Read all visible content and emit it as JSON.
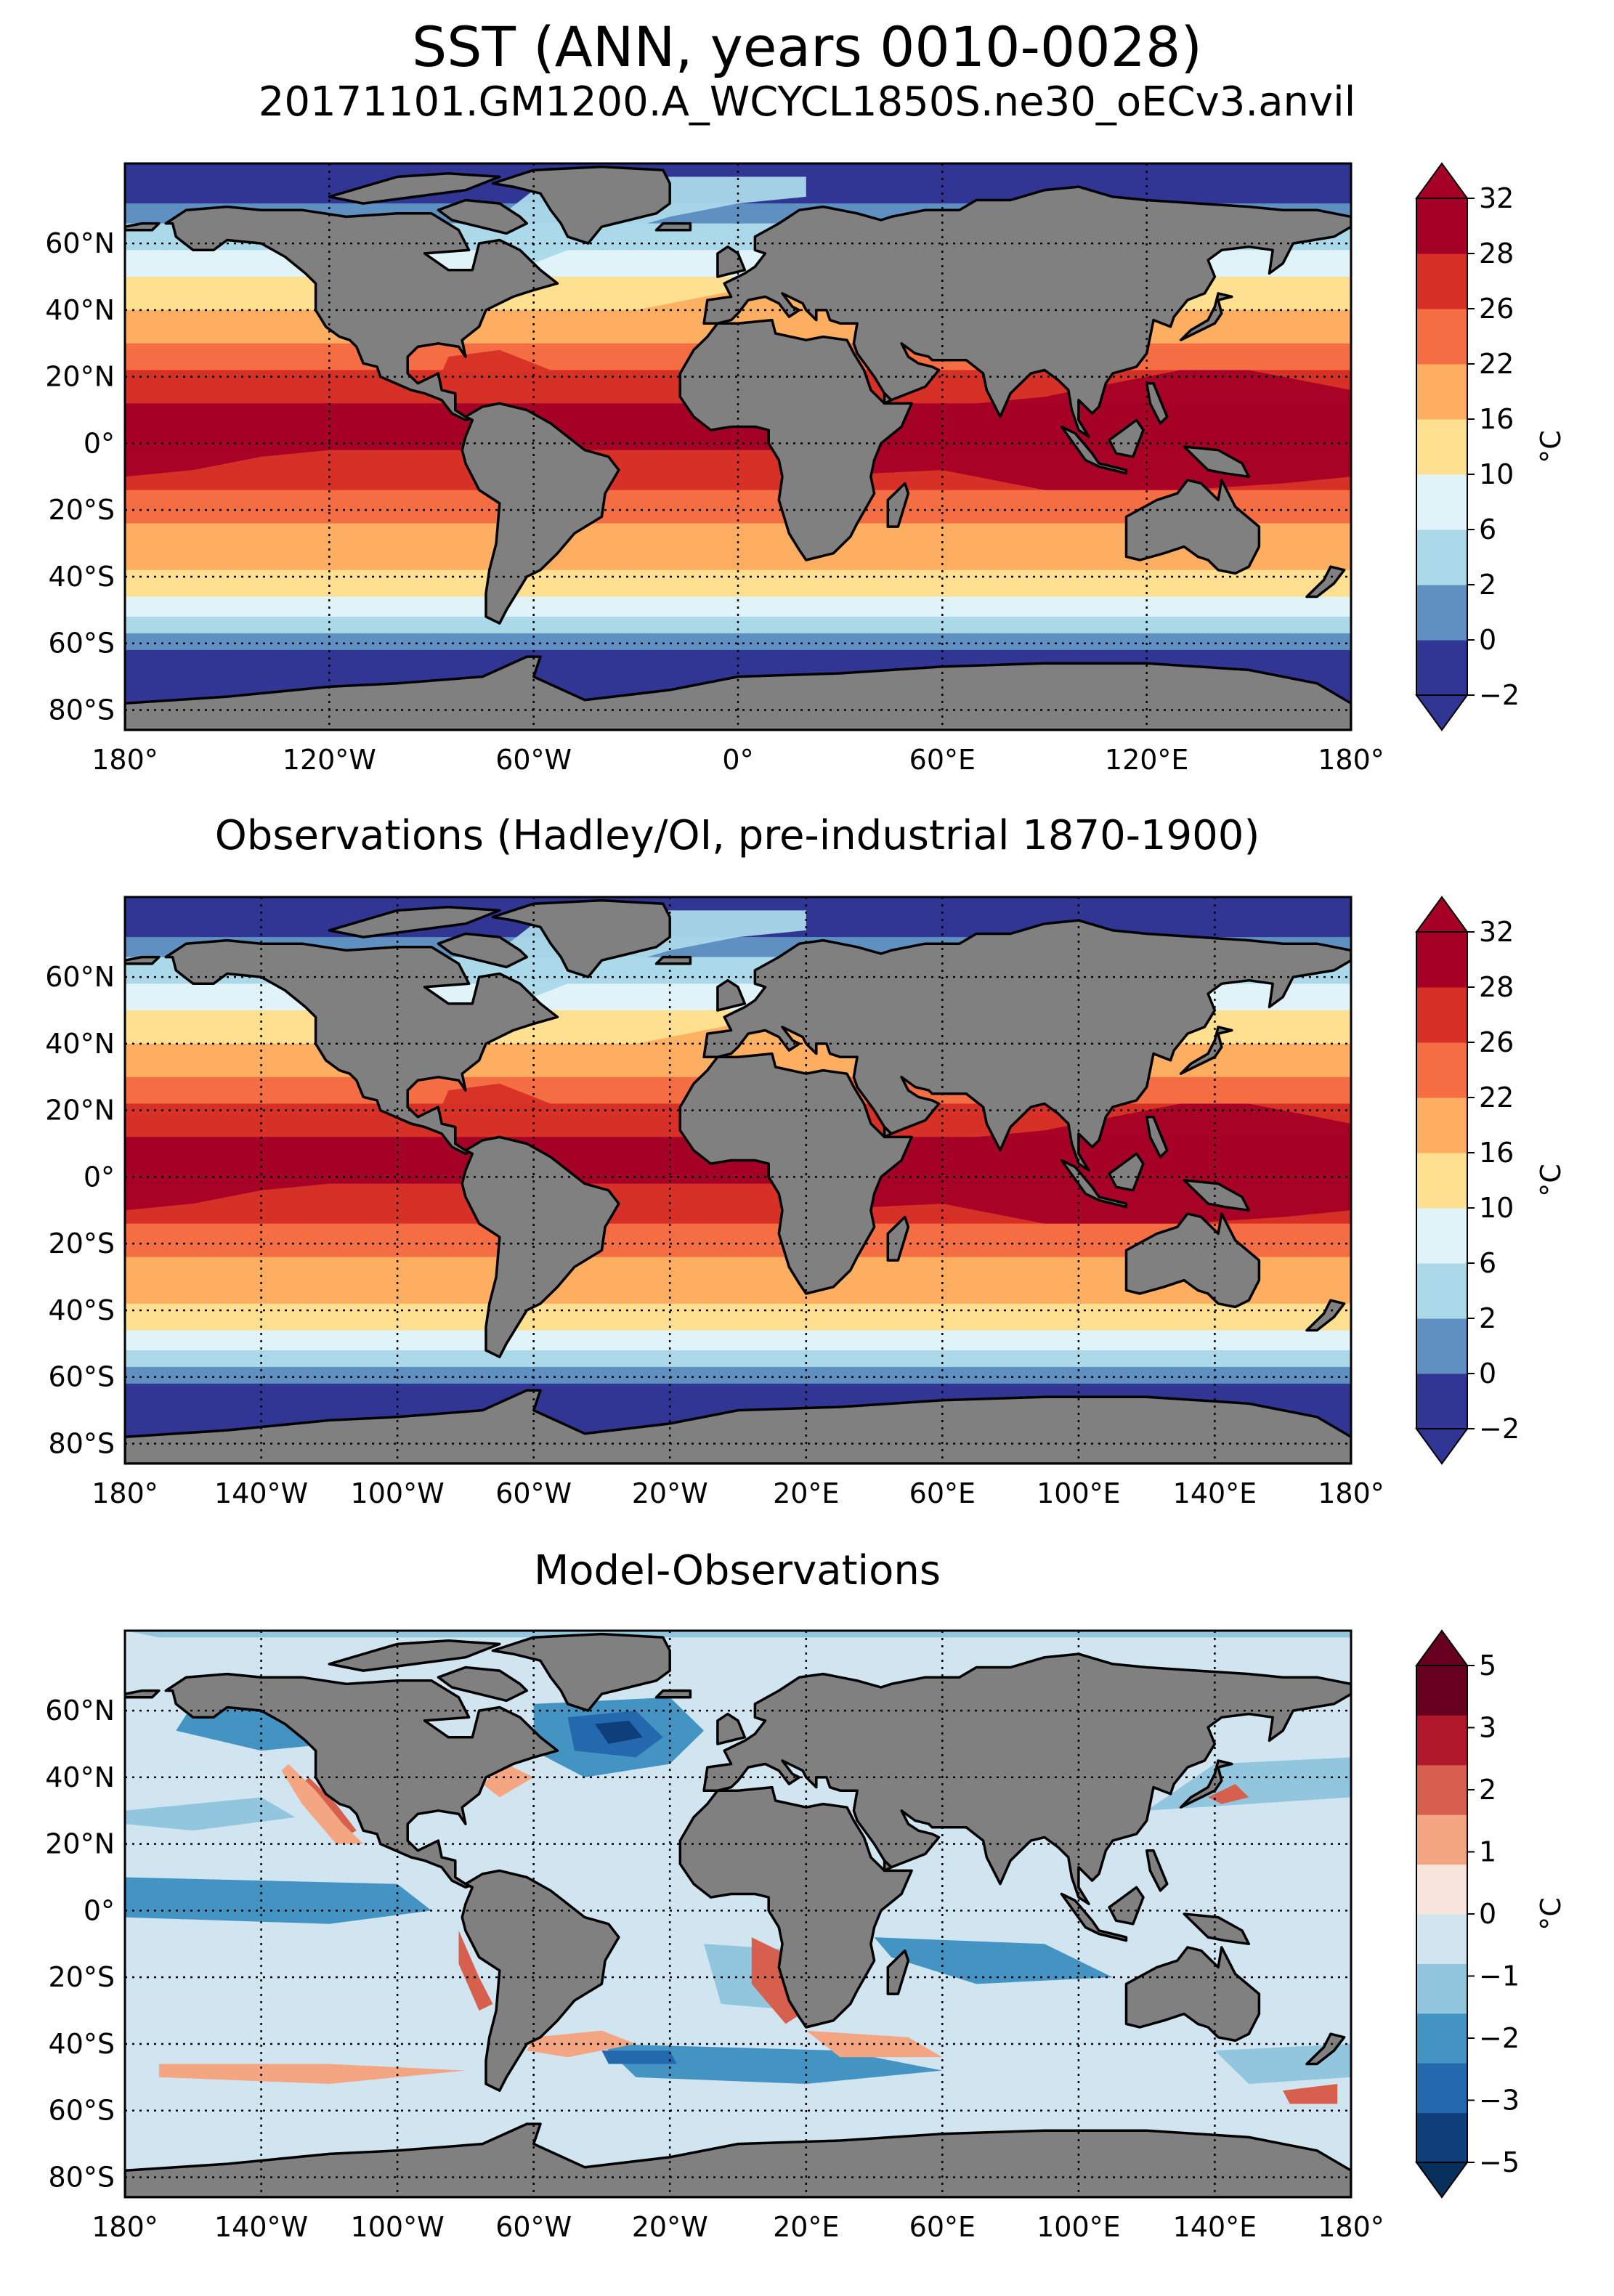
{
  "title": "SST (ANN, years 0010-0028)",
  "subtitle": "20171101.GM1200.A_WCYCL1850S.ne30_oECv3.anvil",
  "colors": {
    "land": "#808080",
    "coast": "#000000",
    "abs_scale": [
      "#313695",
      "#5f90c2",
      "#abd9e9",
      "#e0f3f8",
      "#fee090",
      "#fdae61",
      "#f46d43",
      "#d73027",
      "#a50026"
    ],
    "diff_scale": [
      "#0e3f7a",
      "#2468ae",
      "#4393c3",
      "#92c5de",
      "#d1e5f0",
      "#f7e4da",
      "#f4a582",
      "#d6604d",
      "#b2182b",
      "#67001f"
    ]
  },
  "panels": [
    {
      "id": "model",
      "title": "",
      "unit": "°C",
      "lat_ticks": [
        "60°N",
        "40°N",
        "20°N",
        "0°",
        "20°S",
        "40°S",
        "60°S",
        "80°S"
      ],
      "lon_ticks": [
        "180°",
        "120°W",
        "60°W",
        "0°",
        "60°E",
        "120°E",
        "180°"
      ],
      "colorbar_ticks": [
        "32",
        "28",
        "26",
        "22",
        "16",
        "10",
        "6",
        "2",
        "0",
        "−2"
      ],
      "levels": [
        -2,
        0,
        2,
        6,
        10,
        16,
        22,
        26,
        28,
        32
      ],
      "scale": "abs"
    },
    {
      "id": "obs",
      "title": "Observations (Hadley/OI, pre-industrial 1870-1900)",
      "unit": "°C",
      "lat_ticks": [
        "60°N",
        "40°N",
        "20°N",
        "0°",
        "20°S",
        "40°S",
        "60°S",
        "80°S"
      ],
      "lon_ticks": [
        "180°",
        "140°W",
        "100°W",
        "60°W",
        "20°W",
        "20°E",
        "60°E",
        "100°E",
        "140°E",
        "180°"
      ],
      "colorbar_ticks": [
        "32",
        "28",
        "26",
        "22",
        "16",
        "10",
        "6",
        "2",
        "0",
        "−2"
      ],
      "levels": [
        -2,
        0,
        2,
        6,
        10,
        16,
        22,
        26,
        28,
        32
      ],
      "scale": "abs"
    },
    {
      "id": "diff",
      "title": "Model-Observations",
      "unit": "°C",
      "lat_ticks": [
        "60°N",
        "40°N",
        "20°N",
        "0°",
        "20°S",
        "40°S",
        "60°S",
        "80°S"
      ],
      "lon_ticks": [
        "180°",
        "140°W",
        "100°W",
        "60°W",
        "20°W",
        "20°E",
        "60°E",
        "100°E",
        "140°E",
        "180°"
      ],
      "colorbar_ticks": [
        "5",
        "3",
        "2",
        "1",
        "0",
        "−1",
        "−2",
        "−3",
        "−5"
      ],
      "levels": [
        -5,
        -3,
        -2,
        -1,
        0,
        1,
        2,
        3,
        5
      ],
      "scale": "diff"
    }
  ]
}
